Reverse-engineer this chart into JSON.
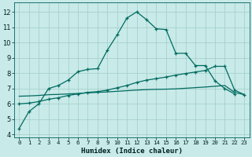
{
  "background_color": "#c8eae8",
  "grid_color": "#a0ccc8",
  "line_color": "#006b60",
  "xlabel": "Humidex (Indice chaleur)",
  "xlim": [
    -0.5,
    23.5
  ],
  "ylim": [
    3.8,
    12.6
  ],
  "yticks": [
    4,
    5,
    6,
    7,
    8,
    9,
    10,
    11,
    12
  ],
  "xticks": [
    0,
    1,
    2,
    3,
    4,
    5,
    6,
    7,
    8,
    9,
    10,
    11,
    12,
    13,
    14,
    15,
    16,
    17,
    18,
    19,
    20,
    21,
    22,
    23
  ],
  "line1_x": [
    0,
    1,
    2,
    3,
    4,
    5,
    6,
    7,
    8,
    9,
    10,
    11,
    12,
    13,
    14,
    15,
    16,
    17,
    18,
    19,
    20,
    21,
    22
  ],
  "line1_y": [
    4.4,
    5.5,
    6.0,
    7.0,
    7.2,
    7.55,
    8.1,
    8.25,
    8.3,
    9.5,
    10.5,
    11.6,
    12.0,
    11.5,
    10.9,
    10.85,
    9.3,
    9.3,
    8.5,
    8.5,
    7.5,
    7.0,
    6.65
  ],
  "line2_x": [
    0,
    1,
    2,
    3,
    4,
    5,
    6,
    7,
    8,
    9,
    10,
    11,
    12,
    13,
    14,
    15,
    16,
    17,
    18,
    19,
    20,
    21,
    22,
    23
  ],
  "line2_y": [
    6.0,
    6.05,
    6.15,
    6.3,
    6.4,
    6.55,
    6.65,
    6.75,
    6.8,
    6.9,
    7.05,
    7.2,
    7.4,
    7.55,
    7.65,
    7.75,
    7.88,
    7.98,
    8.08,
    8.18,
    8.45,
    8.45,
    6.9,
    6.6
  ],
  "line3_x": [
    0,
    1,
    2,
    3,
    4,
    5,
    6,
    7,
    8,
    9,
    10,
    11,
    12,
    13,
    14,
    15,
    16,
    17,
    18,
    19,
    20,
    21,
    22,
    23
  ],
  "line3_y": [
    6.5,
    6.52,
    6.55,
    6.6,
    6.62,
    6.65,
    6.68,
    6.72,
    6.75,
    6.78,
    6.82,
    6.86,
    6.9,
    6.93,
    6.95,
    6.96,
    6.98,
    7.02,
    7.06,
    7.1,
    7.15,
    7.2,
    6.75,
    6.6
  ],
  "xlabel_fontsize": 6.5,
  "tick_fontsize_y": 6,
  "tick_fontsize_x": 5.5
}
